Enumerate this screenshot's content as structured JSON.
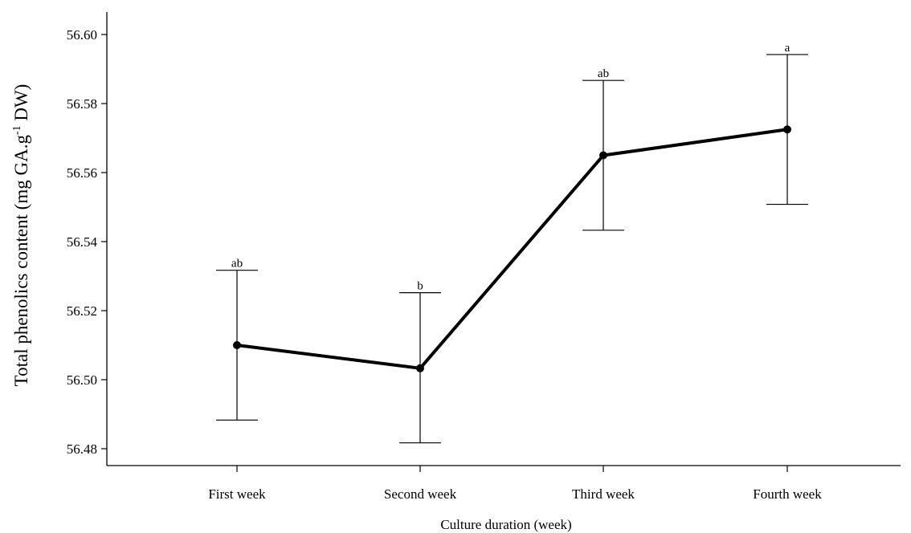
{
  "chart_data": {
    "type": "line",
    "title": "",
    "xlabel": "Culture duration (week)",
    "ylabel": {
      "prefix": "Total phenolics content (mg GA.g",
      "superscript": "-1",
      "suffix": " DW)"
    },
    "categories": [
      "First week",
      "Second week",
      "Third week",
      "Fourth week"
    ],
    "series": [
      {
        "values": [
          56.51,
          56.5033,
          56.565,
          56.5725
        ],
        "error_upper": [
          56.5317,
          56.5252,
          56.5867,
          56.5942
        ],
        "error_lower": [
          56.4883,
          56.4817,
          56.5433,
          56.5508
        ],
        "significance_labels": [
          "ab",
          "b",
          "ab",
          "a"
        ]
      }
    ],
    "ylim": [
      56.475,
      56.605
    ],
    "yticks": [
      "56.48",
      "56.50",
      "56.52",
      "56.54",
      "56.56",
      "56.58",
      "56.60"
    ],
    "grid": false,
    "colors": {
      "line": "#000000",
      "axis": "#000000"
    }
  }
}
